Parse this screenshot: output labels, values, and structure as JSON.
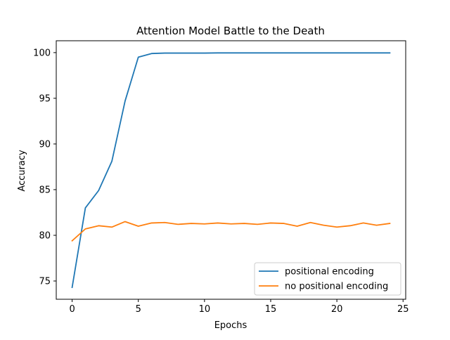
{
  "chart_data": {
    "type": "line",
    "title": "Attention Model Battle to the Death",
    "xlabel": "Epochs",
    "ylabel": "Accuracy",
    "xlim": [
      -1.2,
      25.2
    ],
    "ylim": [
      73.0,
      101.3
    ],
    "xticks": [
      0,
      5,
      10,
      15,
      20,
      25
    ],
    "yticks": [
      75,
      80,
      85,
      90,
      95,
      100
    ],
    "x": [
      0,
      1,
      2,
      3,
      4,
      5,
      6,
      7,
      8,
      9,
      10,
      11,
      12,
      13,
      14,
      15,
      16,
      17,
      18,
      19,
      20,
      21,
      22,
      23,
      24
    ],
    "series": [
      {
        "name": "positional encoding",
        "color": "#1f77b4",
        "values": [
          74.3,
          83.0,
          84.9,
          88.1,
          94.7,
          99.5,
          99.9,
          99.95,
          99.95,
          99.95,
          99.95,
          99.97,
          99.97,
          99.97,
          99.97,
          99.97,
          99.97,
          99.97,
          99.97,
          99.97,
          99.97,
          99.97,
          99.97,
          99.97,
          99.97
        ]
      },
      {
        "name": "no positional encoding",
        "color": "#ff7f0e",
        "values": [
          79.4,
          80.7,
          81.05,
          80.9,
          81.5,
          81.0,
          81.35,
          81.4,
          81.2,
          81.3,
          81.25,
          81.35,
          81.25,
          81.3,
          81.2,
          81.35,
          81.3,
          81.0,
          81.4,
          81.1,
          80.9,
          81.05,
          81.35,
          81.1,
          81.3
        ]
      }
    ],
    "grid": false,
    "legend_position": "lower-right"
  }
}
